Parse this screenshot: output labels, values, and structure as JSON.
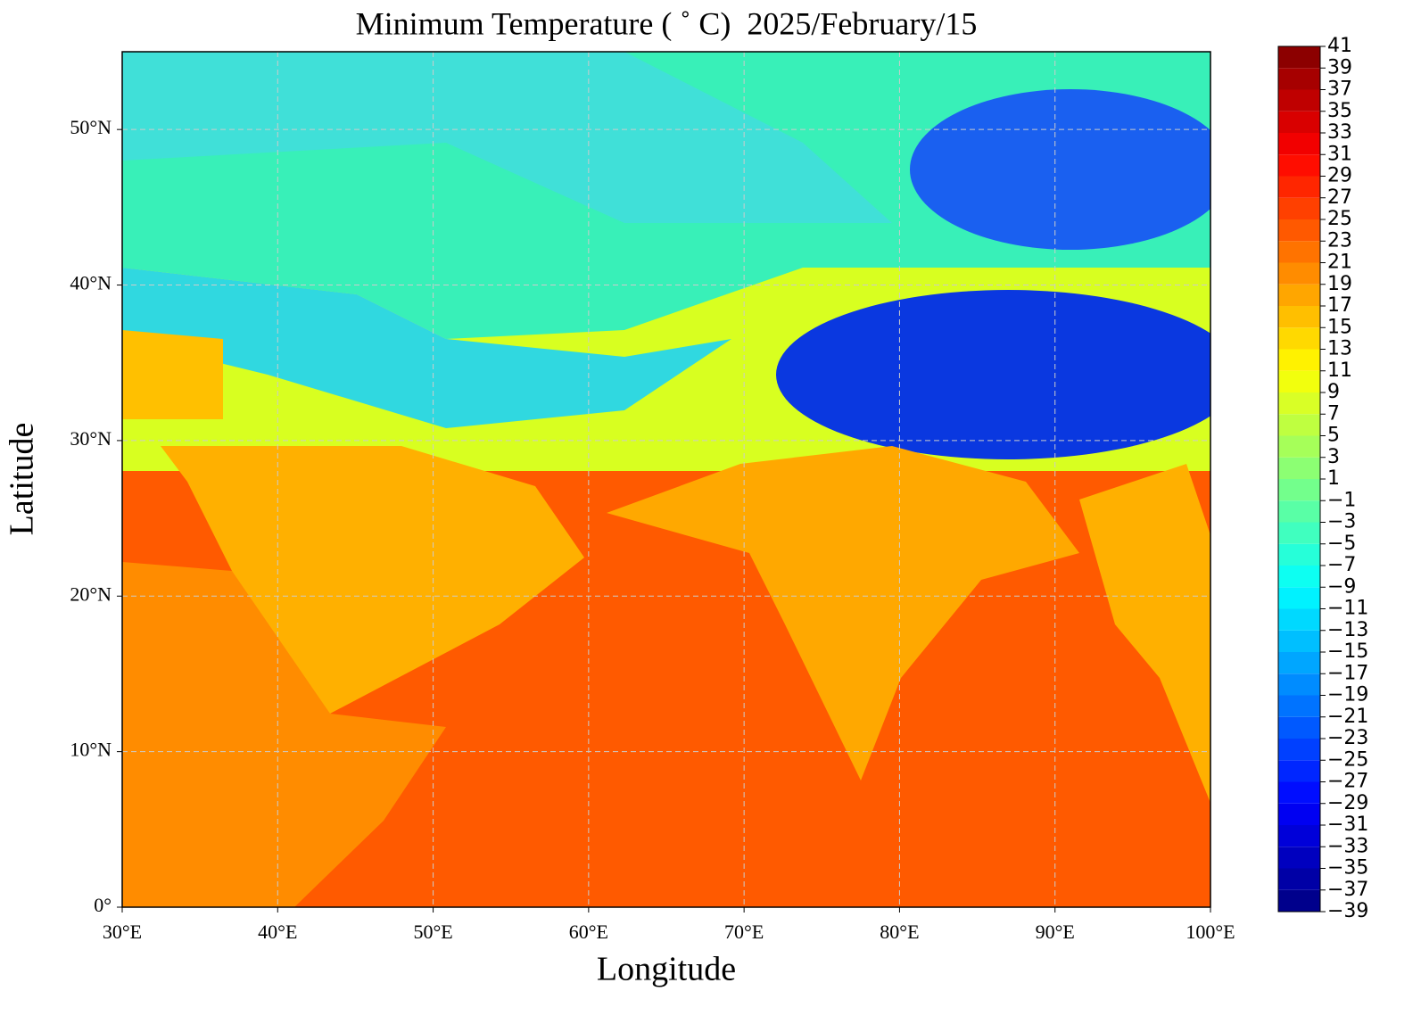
{
  "chart_data": {
    "type": "contour-map",
    "title": "Minimum Temperature ( ˚ C)  2025/February/15",
    "x_label": "Longitude",
    "y_label": "Latitude",
    "xlim": [
      30,
      100
    ],
    "ylim": [
      0,
      55
    ],
    "xticks": [
      {
        "value": 30,
        "label": "30°E"
      },
      {
        "value": 40,
        "label": "40°E"
      },
      {
        "value": 50,
        "label": "50°E"
      },
      {
        "value": 60,
        "label": "60°E"
      },
      {
        "value": 70,
        "label": "70°E"
      },
      {
        "value": 80,
        "label": "80°E"
      },
      {
        "value": 90,
        "label": "90°E"
      },
      {
        "value": 100,
        "label": "100°E"
      }
    ],
    "yticks": [
      {
        "value": 0,
        "label": "0°"
      },
      {
        "value": 10,
        "label": "10°N"
      },
      {
        "value": 20,
        "label": "20°N"
      },
      {
        "value": 30,
        "label": "30°N"
      },
      {
        "value": 40,
        "label": "40°N"
      },
      {
        "value": 50,
        "label": "50°N"
      }
    ],
    "grid": true,
    "colormap": "jet",
    "colorbar_lim": [
      -39,
      41
    ],
    "colorbar_ticks": [
      {
        "value": -39,
        "label": "−39"
      },
      {
        "value": -37,
        "label": "−37"
      },
      {
        "value": -35,
        "label": "−35"
      },
      {
        "value": -33,
        "label": "−33"
      },
      {
        "value": -31,
        "label": "−31"
      },
      {
        "value": -29,
        "label": "−29"
      },
      {
        "value": -27,
        "label": "−27"
      },
      {
        "value": -25,
        "label": "−25"
      },
      {
        "value": -23,
        "label": "−23"
      },
      {
        "value": -21,
        "label": "−21"
      },
      {
        "value": -19,
        "label": "−19"
      },
      {
        "value": -17,
        "label": "−17"
      },
      {
        "value": -15,
        "label": "−15"
      },
      {
        "value": -13,
        "label": "−13"
      },
      {
        "value": -11,
        "label": "−11"
      },
      {
        "value": -9,
        "label": "−9"
      },
      {
        "value": -7,
        "label": "−7"
      },
      {
        "value": -5,
        "label": "−5"
      },
      {
        "value": -3,
        "label": "−3"
      },
      {
        "value": -1,
        "label": "−1"
      },
      1,
      3,
      5,
      7,
      9,
      11,
      13,
      15,
      17,
      19,
      21,
      23,
      25,
      27,
      29,
      31,
      33,
      35,
      37,
      39,
      41
    ]
  }
}
